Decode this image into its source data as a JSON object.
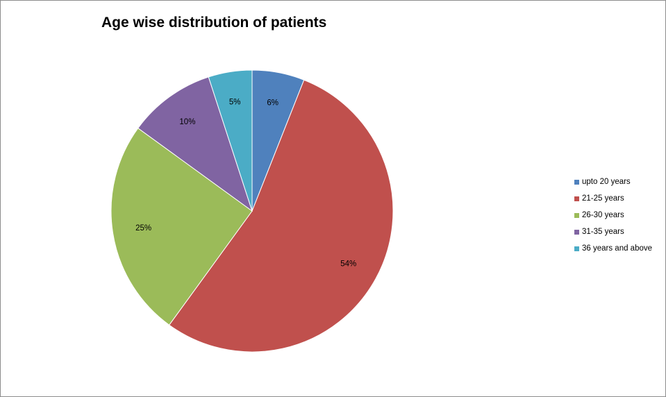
{
  "chart_data": {
    "type": "pie",
    "title": "Age wise distribution of patients",
    "categories": [
      "upto 20 years",
      "21-25 years",
      "26-30 years",
      "31-35 years",
      "36 years and above"
    ],
    "values": [
      6,
      54,
      25,
      10,
      5
    ],
    "data_labels": [
      "6%",
      "54%",
      "25%",
      "10%",
      "5%"
    ],
    "colors": [
      "#4f81bd",
      "#c0504d",
      "#9bbb59",
      "#8064a2",
      "#4bacc6"
    ],
    "start_angle_deg": 0,
    "direction": "clockwise",
    "legend_position": "right"
  }
}
